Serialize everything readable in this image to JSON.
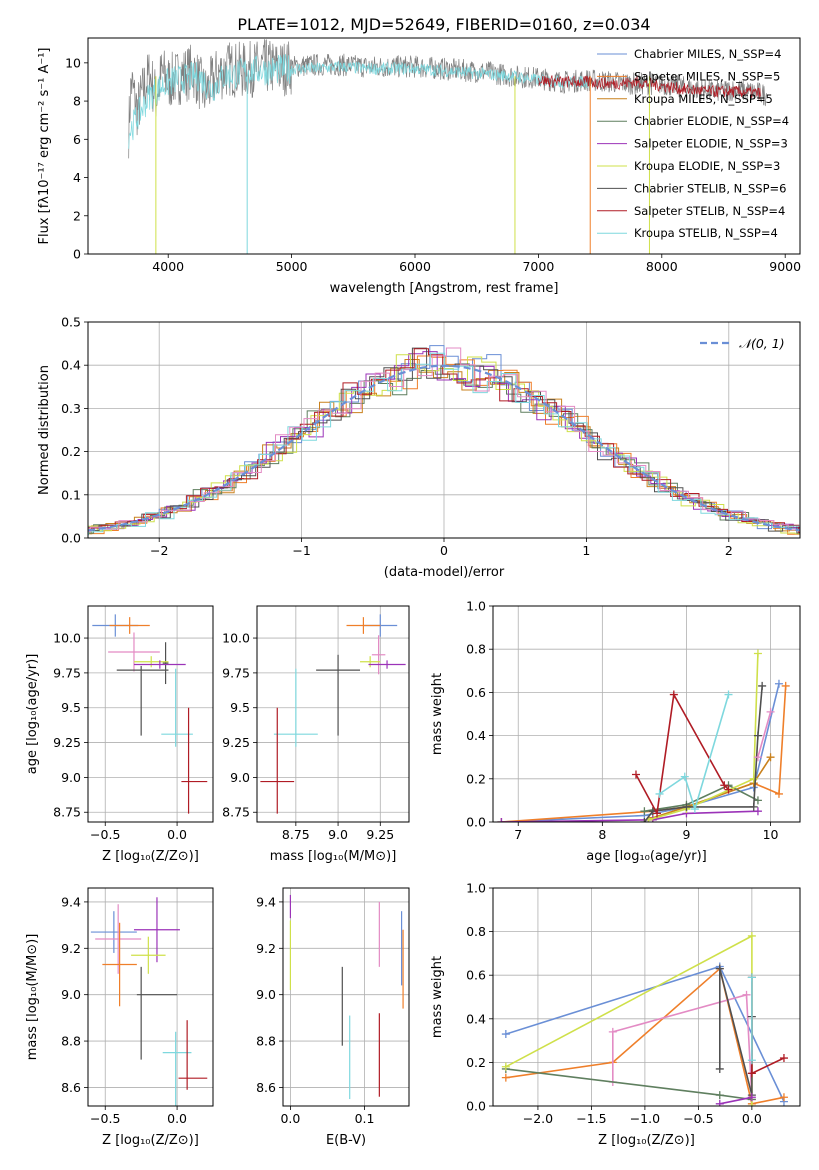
{
  "figure": {
    "title": "PLATE=1012, MJD=52649, FIBERID=0160, z=0.034"
  },
  "palette": {
    "Chabrier MILES": "#6a8fd6",
    "Salpeter MILES": "#ef7f2a",
    "Kroupa MILES": "#c9811d",
    "Chabrier ELODIE": "#5f7f5f",
    "Salpeter ELODIE": "#9b33b8",
    "Kroupa ELODIE": "#cfe04a",
    "Chabrier STELIB": "#505050",
    "Salpeter STELIB": "#b01c25",
    "Kroupa STELIB": "#7ed8de",
    "pink": "#e38bc4",
    "gray": "#808080"
  },
  "chart_data": [
    {
      "id": "spectrum",
      "type": "line",
      "title": "PLATE=1012, MJD=52649, FIBERID=0160, z=0.034",
      "xlabel": "wavelength [Angstrom, rest frame]",
      "ylabel": "Flux [fλ10⁻¹⁷ erg cm⁻² s⁻¹ A⁻¹]",
      "xlim": [
        3350,
        9120
      ],
      "ylim": [
        0,
        11.3
      ],
      "xticks": [
        4000,
        5000,
        6000,
        7000,
        8000,
        9000
      ],
      "yticks": [
        0,
        2,
        4,
        6,
        8,
        10
      ],
      "grid": false,
      "legend_position": "top-right",
      "legend": [
        "Chabrier MILES, N_SSP=4",
        "Salpeter MILES, N_SSP=5",
        "Kroupa MILES, N_SSP=5",
        "Chabrier ELODIE, N_SSP=4",
        "Salpeter ELODIE, N_SSP=3",
        "Kroupa ELODIE, N_SSP=3",
        "Chabrier STELIB, N_SSP=6",
        "Salpeter STELIB, N_SSP=4",
        "Kroupa STELIB, N_SSP=4"
      ],
      "series": [
        {
          "name": "data",
          "color": "gray",
          "x": [
            3680,
            3700,
            3750,
            3800,
            3850,
            3900,
            3950,
            4000,
            4100,
            4200,
            4300,
            4400,
            4500,
            4600,
            4700,
            4800,
            4900,
            5000,
            5200,
            5400,
            5600,
            5800,
            6000,
            6200,
            6400,
            6600,
            6800,
            7000,
            7200,
            7400,
            7600,
            7800,
            8000,
            8200,
            8400,
            8600,
            8800,
            8850
          ],
          "y": [
            6.5,
            9.0,
            7.5,
            8.6,
            9.4,
            8.2,
            9.5,
            9.0,
            9.3,
            9.6,
            8.4,
            9.4,
            9.7,
            9.6,
            9.7,
            9.8,
            9.7,
            9.8,
            9.9,
            9.9,
            9.8,
            9.8,
            9.8,
            9.7,
            9.6,
            9.5,
            9.3,
            9.2,
            9.0,
            9.1,
            9.0,
            8.9,
            8.9,
            8.7,
            8.5,
            8.6,
            8.4,
            8.3
          ]
        },
        {
          "name": "Kroupa STELIB",
          "color": "Kroupa STELIB",
          "x": [
            3680,
            3750,
            3850,
            3950,
            4050,
            4150,
            4250,
            4350,
            4450,
            4550,
            4650,
            4800,
            5000,
            5200,
            5400,
            5600,
            5800,
            6000,
            6200,
            6400,
            6600,
            6800,
            7000,
            7200,
            7400
          ],
          "y": [
            6.3,
            7.2,
            8.3,
            8.8,
            9.1,
            9.2,
            9.3,
            8.6,
            9.3,
            9.4,
            9.6,
            9.6,
            9.7,
            9.7,
            9.8,
            9.7,
            9.7,
            9.7,
            9.6,
            9.5,
            9.4,
            9.3,
            9.1,
            9.0,
            9.0
          ]
        },
        {
          "name": "Salpeter STELIB",
          "color": "Salpeter STELIB",
          "x": [
            7000,
            7200,
            7400,
            7600,
            7800,
            8000,
            8200,
            8400,
            8600,
            8800
          ],
          "y": [
            9.1,
            9.0,
            9.0,
            8.9,
            9.0,
            8.8,
            8.6,
            8.5,
            8.5,
            8.4
          ]
        }
      ]
    },
    {
      "id": "residuals",
      "type": "line",
      "xlabel": "(data-model)/error",
      "ylabel": "Normed distribution",
      "xlim": [
        -2.5,
        2.5
      ],
      "ylim": [
        0,
        0.5
      ],
      "xticks": [
        -2,
        -1,
        0,
        1,
        2
      ],
      "yticks": [
        0.0,
        0.1,
        0.2,
        0.3,
        0.4,
        0.5
      ],
      "grid": true,
      "legend_position": "top-right",
      "legend": [
        "𝒩(0, 1)"
      ],
      "reference": {
        "name": "𝒩(0, 1)",
        "mean": 0,
        "sigma": 1,
        "color": "Chabrier MILES",
        "dashed": true
      }
    },
    {
      "id": "age_vs_Z",
      "type": "scatter",
      "xlabel": "Z [log₁₀(Z/Z⊙)]",
      "ylabel": "age  [log₁₀(age/yr)]",
      "xlim": [
        -0.62,
        0.25
      ],
      "ylim": [
        8.68,
        10.23
      ],
      "xticks": [
        -0.5,
        0.0
      ],
      "yticks": [
        8.75,
        9.0,
        9.25,
        9.5,
        9.75,
        10.0
      ],
      "grid": true,
      "points": [
        {
          "c": "Chabrier MILES",
          "x": -0.43,
          "xe": 0.16,
          "y": 10.09,
          "ye": 0.08
        },
        {
          "c": "Salpeter MILES",
          "x": -0.33,
          "xe": 0.14,
          "y": 10.09,
          "ye": 0.06
        },
        {
          "c": "pink",
          "x": -0.3,
          "xe": 0.18,
          "y": 9.9,
          "ye": 0.14
        },
        {
          "c": "Chabrier STELIB",
          "x": -0.08,
          "xe": 0.02,
          "y": 9.82,
          "ye": 0.15
        },
        {
          "c": "Kroupa ELODIE",
          "x": -0.18,
          "xe": 0.12,
          "y": 9.83,
          "ye": 0.04
        },
        {
          "c": "Salpeter ELODIE",
          "x": -0.12,
          "xe": 0.18,
          "y": 9.81,
          "ye": 0.03
        },
        {
          "c": "Chabrier STELIB",
          "x": -0.24,
          "xe": 0.18,
          "y": 9.77,
          "ye": 0.0
        },
        {
          "c": "Chabrier STELIB",
          "x": -0.25,
          "xe": 0.0,
          "y": 9.55,
          "ye": 0.25
        },
        {
          "c": "Kroupa STELIB",
          "x": 0.0,
          "xe": 0.11,
          "y": 9.31,
          "ye": 0.0
        },
        {
          "c": "Kroupa STELIB",
          "x": -0.01,
          "xe": 0.0,
          "y": 9.5,
          "ye": 0.28
        },
        {
          "c": "Salpeter STELIB",
          "x": 0.12,
          "xe": 0.09,
          "y": 8.97,
          "ye": 0.0
        },
        {
          "c": "Salpeter STELIB",
          "x": 0.08,
          "xe": 0.0,
          "y": 9.12,
          "ye": 0.38
        }
      ]
    },
    {
      "id": "age_vs_mass",
      "type": "scatter",
      "xlabel": "mass [log₁₀(M/M⊙)]",
      "ylabel": "",
      "xlim": [
        8.52,
        9.42
      ],
      "ylim": [
        8.68,
        10.23
      ],
      "xticks": [
        8.75,
        9.0,
        9.25
      ],
      "yticks": [
        8.75,
        9.0,
        9.25,
        9.5,
        9.75,
        10.0
      ],
      "grid": true,
      "points": [
        {
          "c": "Chabrier MILES",
          "x": 9.25,
          "xe": 0.1,
          "y": 10.09,
          "ye": 0.08
        },
        {
          "c": "Salpeter MILES",
          "x": 9.15,
          "xe": 0.1,
          "y": 10.09,
          "ye": 0.06
        },
        {
          "c": "pink",
          "x": 9.24,
          "xe": 0.04,
          "y": 9.88,
          "ye": 0.14
        },
        {
          "c": "Kroupa ELODIE",
          "x": 9.19,
          "xe": 0.06,
          "y": 9.83,
          "ye": 0.04
        },
        {
          "c": "Salpeter ELODIE",
          "x": 9.29,
          "xe": 0.11,
          "y": 9.81,
          "ye": 0.03
        },
        {
          "c": "Chabrier STELIB",
          "x": 9.0,
          "xe": 0.13,
          "y": 9.77,
          "ye": 0.0
        },
        {
          "c": "Chabrier STELIB",
          "x": 9.0,
          "xe": 0.0,
          "y": 9.59,
          "ye": 0.29
        },
        {
          "c": "Kroupa STELIB",
          "x": 8.75,
          "xe": 0.13,
          "y": 9.31,
          "ye": 0.0
        },
        {
          "c": "Kroupa STELIB",
          "x": 8.75,
          "xe": 0.0,
          "y": 9.5,
          "ye": 0.28
        },
        {
          "c": "Salpeter STELIB",
          "x": 8.64,
          "xe": 0.1,
          "y": 8.97,
          "ye": 0.0
        },
        {
          "c": "Salpeter STELIB",
          "x": 8.64,
          "xe": 0.0,
          "y": 9.12,
          "ye": 0.38
        }
      ]
    },
    {
      "id": "weight_vs_age",
      "type": "line",
      "xlabel": "age  [log₁₀(age/yr)]",
      "ylabel": "mass weight",
      "xlim": [
        6.7,
        10.35
      ],
      "ylim": [
        0,
        1.0
      ],
      "xticks": [
        7,
        8,
        9,
        10
      ],
      "yticks": [
        0.0,
        0.2,
        0.4,
        0.6,
        0.8,
        1.0
      ],
      "grid": true,
      "series": [
        {
          "name": "Chabrier MILES",
          "color": "Chabrier MILES",
          "x": [
            6.8,
            8.5,
            9.0,
            9.8,
            10.1
          ],
          "y": [
            0.0,
            0.03,
            0.07,
            0.16,
            0.64
          ]
        },
        {
          "name": "Salpeter MILES",
          "color": "Salpeter MILES",
          "x": [
            6.8,
            8.6,
            9.0,
            9.8,
            10.1,
            10.18
          ],
          "y": [
            0.0,
            0.05,
            0.07,
            0.18,
            0.13,
            0.63
          ]
        },
        {
          "name": "Kroupa MILES",
          "color": "Kroupa MILES",
          "x": [
            8.6,
            9.0,
            9.8,
            10.0
          ],
          "y": [
            0.02,
            0.07,
            0.18,
            0.3
          ]
        },
        {
          "name": "Chabrier ELODIE",
          "color": "Chabrier ELODIE",
          "x": [
            8.5,
            9.0,
            9.5,
            9.85
          ],
          "y": [
            0.05,
            0.08,
            0.17,
            0.1
          ]
        },
        {
          "name": "Salpeter ELODIE",
          "color": "Salpeter ELODIE",
          "x": [
            6.8,
            8.6,
            9.0,
            9.85
          ],
          "y": [
            0.0,
            0.01,
            0.04,
            0.05
          ]
        },
        {
          "name": "Kroupa ELODIE",
          "color": "Kroupa ELODIE",
          "x": [
            8.55,
            9.0,
            9.8,
            9.85
          ],
          "y": [
            0.01,
            0.06,
            0.2,
            0.78
          ]
        },
        {
          "name": "Chabrier STELIB",
          "color": "Chabrier STELIB",
          "x": [
            8.5,
            8.6,
            9.0,
            9.8,
            9.85,
            9.9
          ],
          "y": [
            0.0,
            0.05,
            0.07,
            0.07,
            0.4,
            0.63
          ]
        },
        {
          "name": "Salpeter STELIB",
          "color": "Salpeter STELIB",
          "x": [
            8.4,
            8.65,
            8.85,
            9.45,
            9.5
          ],
          "y": [
            0.22,
            0.04,
            0.59,
            0.17,
            0.15
          ]
        },
        {
          "name": "Kroupa STELIB",
          "color": "Kroupa STELIB",
          "x": [
            8.68,
            8.98,
            9.1,
            9.5
          ],
          "y": [
            0.13,
            0.21,
            0.06,
            0.59
          ]
        },
        {
          "name": "pink",
          "color": "pink",
          "x": [
            9.85,
            10.0
          ],
          "y": [
            0.3,
            0.51
          ]
        }
      ]
    },
    {
      "id": "mass_vs_Z",
      "type": "scatter",
      "xlabel": "Z [log₁₀(Z/Z⊙)]",
      "ylabel": "mass [log₁₀(M/M⊙)]",
      "xlim": [
        -0.62,
        0.25
      ],
      "ylim": [
        8.52,
        9.46
      ],
      "xticks": [
        -0.5,
        0.0
      ],
      "yticks": [
        8.6,
        8.8,
        9.0,
        9.2,
        9.4
      ],
      "grid": true,
      "points": [
        {
          "c": "Chabrier MILES",
          "x": -0.44,
          "xe": 0.16,
          "y": 9.27,
          "ye": 0.09
        },
        {
          "c": "pink",
          "x": -0.41,
          "xe": 0.16,
          "y": 9.24,
          "ye": 0.15
        },
        {
          "c": "Salpeter ELODIE",
          "x": -0.14,
          "xe": 0.16,
          "y": 9.28,
          "ye": 0.14
        },
        {
          "c": "Kroupa ELODIE",
          "x": -0.2,
          "xe": 0.12,
          "y": 9.17,
          "ye": 0.08
        },
        {
          "c": "Salpeter MILES",
          "x": -0.4,
          "xe": 0.12,
          "y": 9.13,
          "ye": 0.18
        },
        {
          "c": "Chabrier STELIB",
          "x": -0.14,
          "xe": 0.14,
          "y": 9.0,
          "ye": 0.0
        },
        {
          "c": "Chabrier STELIB",
          "x": -0.25,
          "xe": 0.0,
          "y": 8.92,
          "ye": 0.2
        },
        {
          "c": "Kroupa STELIB",
          "x": 0.0,
          "xe": 0.1,
          "y": 8.75,
          "ye": 0.0
        },
        {
          "c": "Kroupa STELIB",
          "x": -0.01,
          "xe": 0.0,
          "y": 8.68,
          "ye": 0.16
        },
        {
          "c": "Salpeter STELIB",
          "x": 0.11,
          "xe": 0.1,
          "y": 8.64,
          "ye": 0.0
        },
        {
          "c": "Salpeter STELIB",
          "x": 0.07,
          "xe": 0.0,
          "y": 8.74,
          "ye": 0.15
        }
      ]
    },
    {
      "id": "mass_vs_ebv",
      "type": "scatter",
      "xlabel": "E(B-V)",
      "ylabel": "",
      "xlim": [
        -0.01,
        0.16
      ],
      "ylim": [
        8.52,
        9.46
      ],
      "xticks": [
        0.0,
        0.1
      ],
      "yticks": [
        8.6,
        8.8,
        9.0,
        9.2,
        9.4
      ],
      "grid": true,
      "points": [
        {
          "c": "Salpeter ELODIE",
          "x": 0.0,
          "xe": 0.0,
          "y": 9.38,
          "ye": 0.05
        },
        {
          "c": "Kroupa ELODIE",
          "x": 0.0,
          "xe": 0.0,
          "y": 9.17,
          "ye": 0.15
        },
        {
          "c": "Chabrier STELIB",
          "x": 0.07,
          "xe": 0.0,
          "y": 8.95,
          "ye": 0.17
        },
        {
          "c": "Kroupa STELIB",
          "x": 0.08,
          "xe": 0.0,
          "y": 8.73,
          "ye": 0.18
        },
        {
          "c": "Salpeter STELIB",
          "x": 0.12,
          "xe": 0.0,
          "y": 8.74,
          "ye": 0.18
        },
        {
          "c": "pink",
          "x": 0.12,
          "xe": 0.0,
          "y": 9.26,
          "ye": 0.14
        },
        {
          "c": "Chabrier MILES",
          "x": 0.15,
          "xe": 0.0,
          "y": 9.2,
          "ye": 0.16
        },
        {
          "c": "Salpeter MILES",
          "x": 0.152,
          "xe": 0.0,
          "y": 9.11,
          "ye": 0.17
        }
      ]
    },
    {
      "id": "weight_vs_Z",
      "type": "line",
      "xlabel": "Z [log₁₀(Z/Z⊙)]",
      "ylabel": "mass weight",
      "xlim": [
        -2.42,
        0.45
      ],
      "ylim": [
        0,
        1.0
      ],
      "xticks": [
        -2.0,
        -1.5,
        -1.0,
        -0.5,
        0.0
      ],
      "yticks": [
        0.0,
        0.2,
        0.4,
        0.6,
        0.8,
        1.0
      ],
      "grid": true,
      "series": [
        {
          "name": "Chabrier MILES",
          "color": "Chabrier MILES",
          "x": [
            -2.3,
            -0.3,
            0.3
          ],
          "y": [
            0.33,
            0.64,
            0.02
          ]
        },
        {
          "name": "Salpeter MILES",
          "color": "Salpeter MILES",
          "x": [
            -2.3,
            -1.3,
            -0.3,
            0.0,
            0.3
          ],
          "y": [
            0.13,
            0.2,
            0.63,
            0.01,
            0.04
          ]
        },
        {
          "name": "pink",
          "color": "pink",
          "x": [
            -1.3,
            -1.3,
            -0.05,
            0.0
          ],
          "y": [
            0.11,
            0.34,
            0.51,
            0.03
          ]
        },
        {
          "name": "Chabrier ELODIE",
          "color": "Chabrier ELODIE",
          "x": [
            -2.3,
            -0.3,
            0.0
          ],
          "y": [
            0.17,
            0.05,
            0.03
          ]
        },
        {
          "name": "Kroupa ELODIE",
          "color": "Kroupa ELODIE",
          "x": [
            -2.3,
            0.0,
            0.0
          ],
          "y": [
            0.18,
            0.78,
            0.0
          ]
        },
        {
          "name": "Chabrier STELIB",
          "color": "Chabrier STELIB",
          "x": [
            -0.3,
            -0.3,
            0.0,
            0.0
          ],
          "y": [
            0.17,
            0.63,
            0.05,
            0.41
          ]
        },
        {
          "name": "Salpeter STELIB",
          "color": "Salpeter STELIB",
          "x": [
            0.0,
            0.0,
            0.3
          ],
          "y": [
            0.59,
            0.15,
            0.22
          ]
        },
        {
          "name": "Kroupa STELIB",
          "color": "Kroupa STELIB",
          "x": [
            0.0,
            0.0
          ],
          "y": [
            0.59,
            0.21
          ]
        },
        {
          "name": "Salpeter ELODIE",
          "color": "Salpeter ELODIE",
          "x": [
            -0.3,
            0.0
          ],
          "y": [
            0.01,
            0.04
          ]
        }
      ]
    }
  ]
}
